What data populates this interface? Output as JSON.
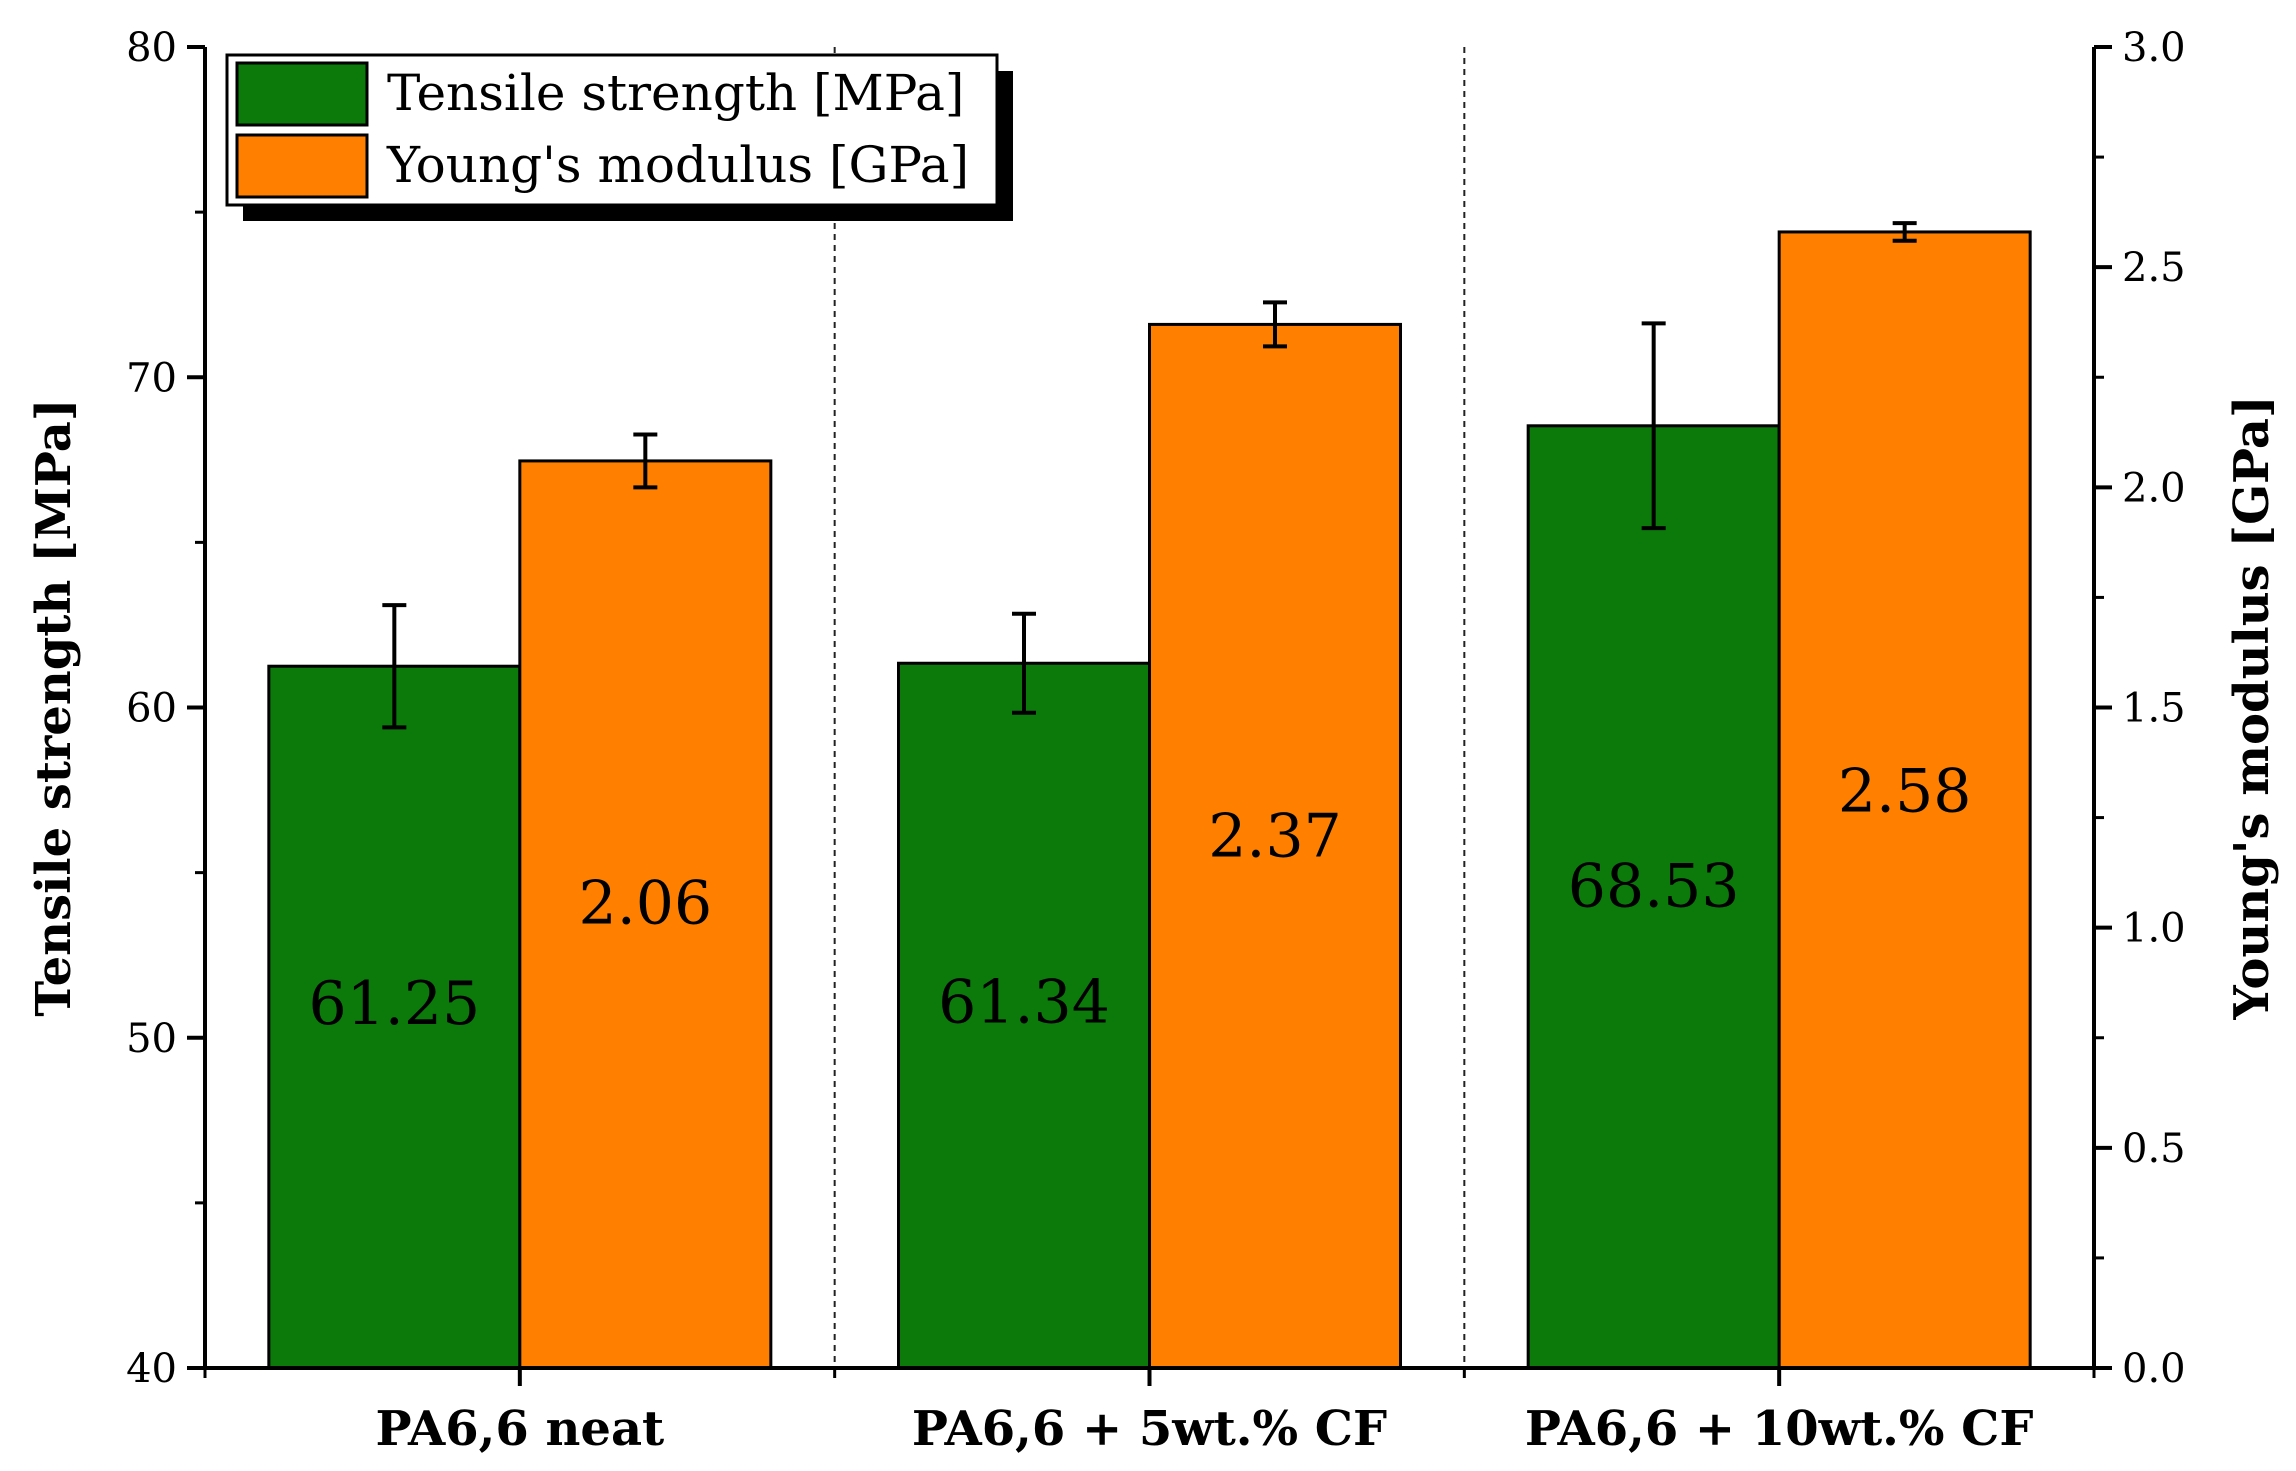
{
  "chart_data": {
    "type": "bar",
    "title": "",
    "categories": [
      "PA6,6 neat",
      "PA6,6 + 5wt.% CF",
      "PA6,6 + 10wt.% CF"
    ],
    "xlabel": "",
    "series": [
      {
        "name": "Tensile strength [MPa]",
        "axis": "left",
        "color": "#0b7a0b",
        "values": [
          61.25,
          61.34,
          68.53
        ],
        "errors": [
          1.85,
          1.5,
          3.1
        ],
        "labels": [
          "61.25",
          "61.34",
          "68.53"
        ]
      },
      {
        "name": "Young's modulus [GPa]",
        "axis": "right",
        "color": "#ff8000",
        "values": [
          2.06,
          2.37,
          2.58
        ],
        "errors": [
          0.06,
          0.05,
          0.02
        ],
        "labels": [
          "2.06",
          "2.37",
          "2.58"
        ]
      }
    ],
    "y_left": {
      "label": "Tensile strength [MPa]",
      "range": [
        40,
        80
      ],
      "ticks": [
        "40",
        "50",
        "60",
        "70",
        "80"
      ]
    },
    "y_right": {
      "label": "Young's modulus [GPa]",
      "range": [
        0,
        3.0
      ],
      "ticks": [
        "0.0",
        "0.5",
        "1.0",
        "1.5",
        "2.0",
        "2.5",
        "3.0"
      ]
    },
    "legend": {
      "position": "top-left"
    }
  }
}
